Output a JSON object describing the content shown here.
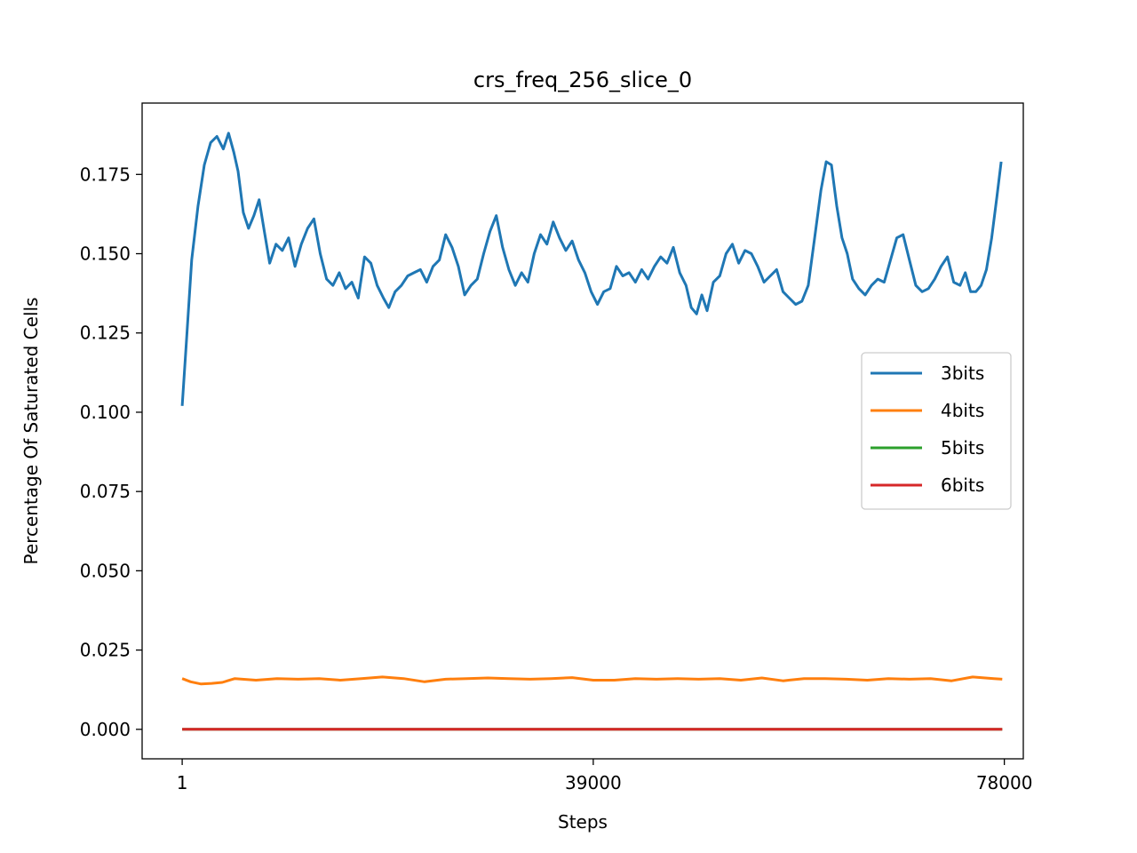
{
  "chart_data": {
    "type": "line",
    "title": "crs_freq_256_slice_0",
    "xlabel": "Steps",
    "ylabel": "Percentage Of Saturated Cells",
    "xlim": [
      -3800,
      79800
    ],
    "ylim": [
      -0.0093,
      0.1975
    ],
    "xticks": [
      1,
      39000,
      78000
    ],
    "xtick_labels": [
      "1",
      "39000",
      "78000"
    ],
    "yticks": [
      0.0,
      0.025,
      0.05,
      0.075,
      0.1,
      0.125,
      0.15,
      0.175
    ],
    "ytick_labels": [
      "0.000",
      "0.025",
      "0.050",
      "0.075",
      "0.100",
      "0.125",
      "0.150",
      "0.175"
    ],
    "grid": false,
    "legend_position": "center-right",
    "series": [
      {
        "name": "3bits",
        "color": "#1f77b4",
        "points": [
          [
            1,
            0.102
          ],
          [
            400,
            0.122
          ],
          [
            900,
            0.148
          ],
          [
            1500,
            0.165
          ],
          [
            2100,
            0.178
          ],
          [
            2700,
            0.185
          ],
          [
            3300,
            0.187
          ],
          [
            3900,
            0.183
          ],
          [
            4400,
            0.188
          ],
          [
            4900,
            0.182
          ],
          [
            5300,
            0.176
          ],
          [
            5800,
            0.163
          ],
          [
            6300,
            0.158
          ],
          [
            6800,
            0.162
          ],
          [
            7300,
            0.167
          ],
          [
            7800,
            0.157
          ],
          [
            8300,
            0.147
          ],
          [
            8900,
            0.153
          ],
          [
            9500,
            0.151
          ],
          [
            10100,
            0.155
          ],
          [
            10700,
            0.146
          ],
          [
            11300,
            0.153
          ],
          [
            11900,
            0.158
          ],
          [
            12500,
            0.161
          ],
          [
            13100,
            0.15
          ],
          [
            13700,
            0.142
          ],
          [
            14300,
            0.14
          ],
          [
            14900,
            0.144
          ],
          [
            15500,
            0.139
          ],
          [
            16100,
            0.141
          ],
          [
            16700,
            0.136
          ],
          [
            17300,
            0.149
          ],
          [
            17900,
            0.147
          ],
          [
            18500,
            0.14
          ],
          [
            19100,
            0.136
          ],
          [
            19600,
            0.133
          ],
          [
            20200,
            0.138
          ],
          [
            20800,
            0.14
          ],
          [
            21400,
            0.143
          ],
          [
            22000,
            0.144
          ],
          [
            22600,
            0.145
          ],
          [
            23200,
            0.141
          ],
          [
            23800,
            0.146
          ],
          [
            24400,
            0.148
          ],
          [
            25000,
            0.156
          ],
          [
            25600,
            0.152
          ],
          [
            26200,
            0.146
          ],
          [
            26800,
            0.137
          ],
          [
            27400,
            0.14
          ],
          [
            28000,
            0.142
          ],
          [
            28600,
            0.15
          ],
          [
            29200,
            0.157
          ],
          [
            29800,
            0.162
          ],
          [
            30400,
            0.152
          ],
          [
            31000,
            0.145
          ],
          [
            31600,
            0.14
          ],
          [
            32200,
            0.144
          ],
          [
            32800,
            0.141
          ],
          [
            33400,
            0.15
          ],
          [
            34000,
            0.156
          ],
          [
            34600,
            0.153
          ],
          [
            35200,
            0.16
          ],
          [
            35800,
            0.155
          ],
          [
            36400,
            0.151
          ],
          [
            37000,
            0.154
          ],
          [
            37600,
            0.148
          ],
          [
            38200,
            0.144
          ],
          [
            38800,
            0.138
          ],
          [
            39400,
            0.134
          ],
          [
            40000,
            0.138
          ],
          [
            40600,
            0.139
          ],
          [
            41200,
            0.146
          ],
          [
            41800,
            0.143
          ],
          [
            42400,
            0.144
          ],
          [
            43000,
            0.141
          ],
          [
            43600,
            0.145
          ],
          [
            44200,
            0.142
          ],
          [
            44800,
            0.146
          ],
          [
            45400,
            0.149
          ],
          [
            46000,
            0.147
          ],
          [
            46600,
            0.152
          ],
          [
            47200,
            0.144
          ],
          [
            47800,
            0.14
          ],
          [
            48300,
            0.133
          ],
          [
            48800,
            0.131
          ],
          [
            49300,
            0.137
          ],
          [
            49800,
            0.132
          ],
          [
            50400,
            0.141
          ],
          [
            51000,
            0.143
          ],
          [
            51600,
            0.15
          ],
          [
            52200,
            0.153
          ],
          [
            52800,
            0.147
          ],
          [
            53400,
            0.151
          ],
          [
            54000,
            0.15
          ],
          [
            54600,
            0.146
          ],
          [
            55200,
            0.141
          ],
          [
            55800,
            0.143
          ],
          [
            56400,
            0.145
          ],
          [
            57000,
            0.138
          ],
          [
            57600,
            0.136
          ],
          [
            58200,
            0.134
          ],
          [
            58800,
            0.135
          ],
          [
            59400,
            0.14
          ],
          [
            60000,
            0.155
          ],
          [
            60600,
            0.17
          ],
          [
            61100,
            0.179
          ],
          [
            61600,
            0.178
          ],
          [
            62100,
            0.165
          ],
          [
            62600,
            0.155
          ],
          [
            63100,
            0.15
          ],
          [
            63600,
            0.142
          ],
          [
            64200,
            0.139
          ],
          [
            64800,
            0.137
          ],
          [
            65400,
            0.14
          ],
          [
            66000,
            0.142
          ],
          [
            66600,
            0.141
          ],
          [
            67200,
            0.148
          ],
          [
            67800,
            0.155
          ],
          [
            68400,
            0.156
          ],
          [
            69000,
            0.148
          ],
          [
            69600,
            0.14
          ],
          [
            70200,
            0.138
          ],
          [
            70800,
            0.139
          ],
          [
            71400,
            0.142
          ],
          [
            72000,
            0.146
          ],
          [
            72600,
            0.149
          ],
          [
            73200,
            0.141
          ],
          [
            73800,
            0.14
          ],
          [
            74300,
            0.144
          ],
          [
            74800,
            0.138
          ],
          [
            75300,
            0.138
          ],
          [
            75800,
            0.14
          ],
          [
            76300,
            0.145
          ],
          [
            76800,
            0.155
          ],
          [
            77300,
            0.168
          ],
          [
            77700,
            0.179
          ]
        ]
      },
      {
        "name": "4bits",
        "color": "#ff7f0e",
        "points": [
          [
            1,
            0.016
          ],
          [
            800,
            0.015
          ],
          [
            1800,
            0.0143
          ],
          [
            2800,
            0.0145
          ],
          [
            3800,
            0.0148
          ],
          [
            5000,
            0.016
          ],
          [
            7000,
            0.0155
          ],
          [
            9000,
            0.016
          ],
          [
            11000,
            0.0158
          ],
          [
            13000,
            0.016
          ],
          [
            15000,
            0.0155
          ],
          [
            17000,
            0.016
          ],
          [
            19000,
            0.0165
          ],
          [
            21000,
            0.016
          ],
          [
            23000,
            0.015
          ],
          [
            25000,
            0.0158
          ],
          [
            27000,
            0.016
          ],
          [
            29000,
            0.0162
          ],
          [
            31000,
            0.016
          ],
          [
            33000,
            0.0158
          ],
          [
            35000,
            0.016
          ],
          [
            37000,
            0.0163
          ],
          [
            39000,
            0.0155
          ],
          [
            41000,
            0.0155
          ],
          [
            43000,
            0.016
          ],
          [
            45000,
            0.0158
          ],
          [
            47000,
            0.016
          ],
          [
            49000,
            0.0158
          ],
          [
            51000,
            0.016
          ],
          [
            53000,
            0.0155
          ],
          [
            55000,
            0.0162
          ],
          [
            57000,
            0.0153
          ],
          [
            59000,
            0.016
          ],
          [
            61000,
            0.016
          ],
          [
            63000,
            0.0158
          ],
          [
            65000,
            0.0155
          ],
          [
            67000,
            0.016
          ],
          [
            69000,
            0.0158
          ],
          [
            71000,
            0.016
          ],
          [
            73000,
            0.0153
          ],
          [
            75000,
            0.0165
          ],
          [
            77000,
            0.016
          ],
          [
            77800,
            0.0158
          ]
        ]
      },
      {
        "name": "5bits",
        "color": "#2ca02c",
        "points": [
          [
            1,
            0.0
          ],
          [
            77800,
            0.0
          ]
        ]
      },
      {
        "name": "6bits",
        "color": "#d62728",
        "points": [
          [
            1,
            0.0
          ],
          [
            77800,
            0.0
          ]
        ]
      }
    ]
  }
}
